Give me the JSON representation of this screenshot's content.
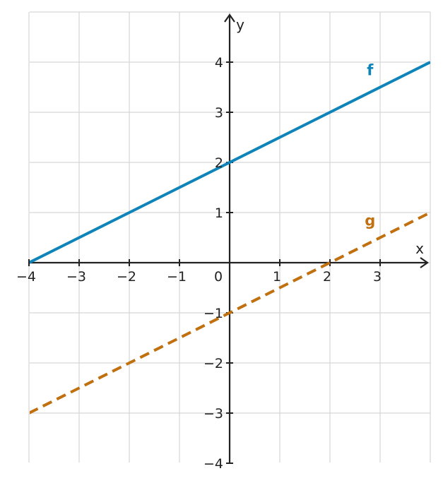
{
  "chart_data": {
    "type": "line",
    "title": "",
    "xlabel": "x",
    "ylabel": "y",
    "xlim": [
      -4,
      4
    ],
    "ylim": [
      -4,
      5
    ],
    "grid": true,
    "x_ticks": [
      -4,
      -3,
      -2,
      -1,
      0,
      1,
      2,
      3
    ],
    "x_tick_labels": [
      "−4",
      "−3",
      "−2",
      "−1",
      "0",
      "1",
      "2",
      "3"
    ],
    "y_ticks": [
      -4,
      -3,
      -2,
      -1,
      1,
      2,
      3,
      4
    ],
    "y_tick_labels": [
      "−4",
      "−3",
      "−2",
      "−1",
      "1",
      "2",
      "3",
      "4"
    ],
    "series": [
      {
        "name": "f",
        "color": "#0e84b8",
        "style": "solid",
        "x": [
          -4,
          -3,
          -2,
          -1,
          0,
          1,
          2,
          3,
          4
        ],
        "y": [
          0,
          0.5,
          1,
          1.5,
          2,
          2.5,
          3,
          3.5,
          4
        ],
        "label_at": [
          2.8,
          3.85
        ]
      },
      {
        "name": "g",
        "color": "#c0700e",
        "style": "dashed",
        "x": [
          -4,
          -3,
          -2,
          -1,
          0,
          1,
          2,
          3,
          4
        ],
        "y": [
          -3,
          -2.5,
          -2,
          -1.5,
          -1,
          -0.5,
          0,
          0.5,
          1
        ],
        "label_at": [
          2.8,
          0.85
        ]
      }
    ]
  }
}
